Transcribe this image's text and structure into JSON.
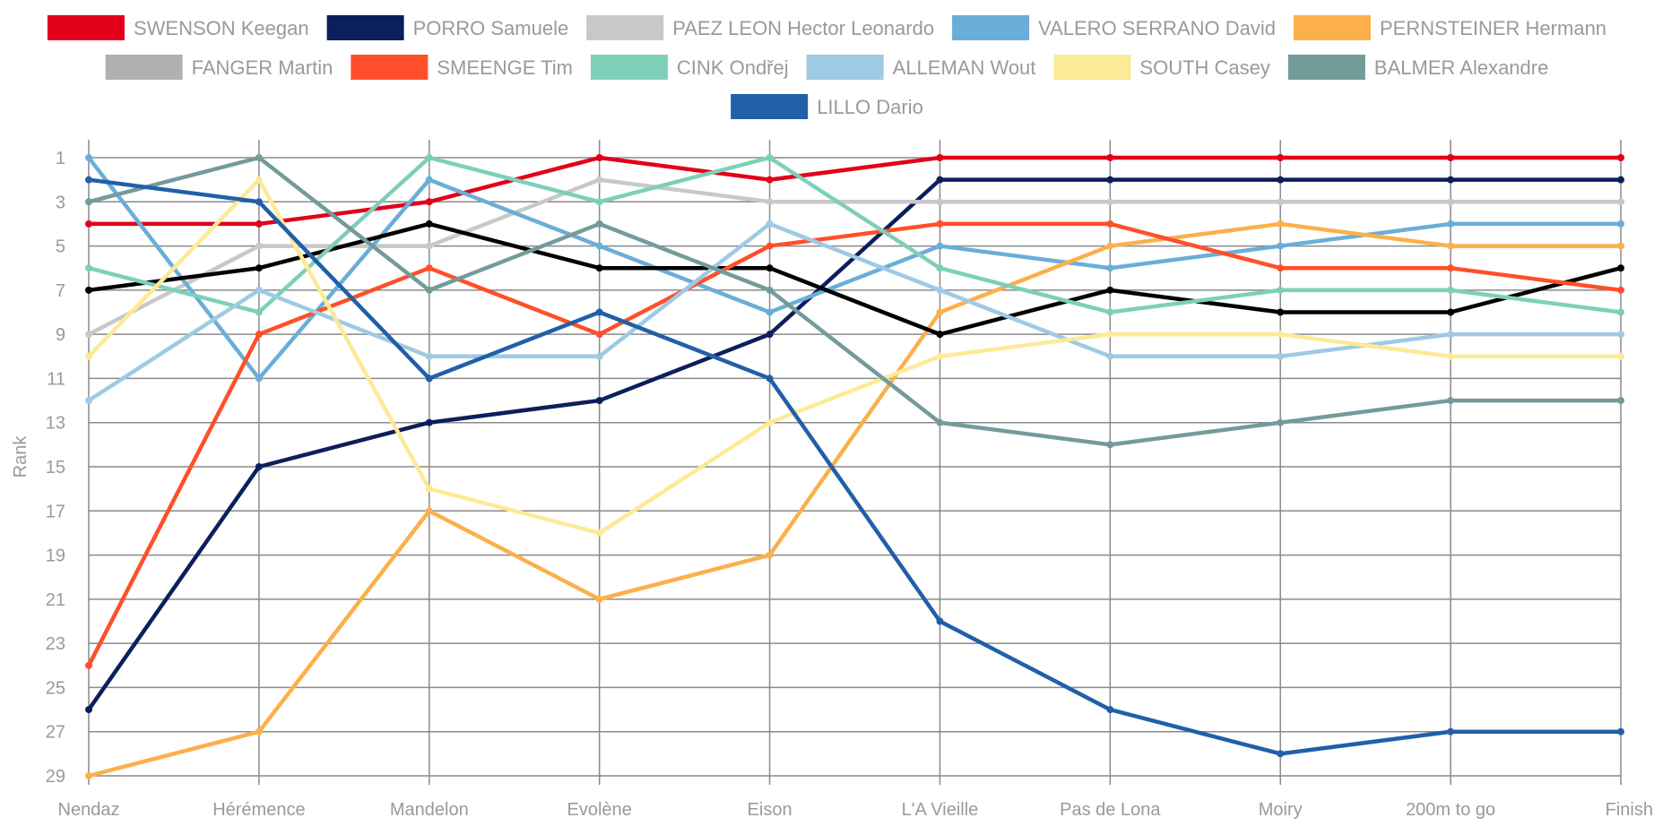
{
  "chart_data": {
    "type": "line",
    "title": "",
    "xlabel": "",
    "ylabel": "Rank",
    "categories": [
      "Nendaz",
      "Hérémence",
      "Mandelon",
      "Evolène",
      "Eison",
      "L'A Vieille",
      "Pas de Lona",
      "Moiry",
      "200m to go",
      "Finish"
    ],
    "y_ticks": [
      1,
      3,
      5,
      7,
      9,
      11,
      13,
      15,
      17,
      19,
      21,
      23,
      25,
      27,
      29
    ],
    "ylim": [
      0.5,
      29
    ],
    "y_reversed": true,
    "grid": true,
    "legend_position": "top",
    "series": [
      {
        "name": "SWENSON Keegan",
        "color": "#e2001a",
        "values": [
          4,
          4,
          3,
          1,
          2,
          1,
          1,
          1,
          1,
          1
        ]
      },
      {
        "name": "PORRO Samuele",
        "color": "#0b1f5c",
        "values": [
          26,
          15,
          13,
          12,
          9,
          2,
          2,
          2,
          2,
          2
        ]
      },
      {
        "name": "PAEZ LEON Hector Leonardo",
        "color": "#c8c8c8",
        "values": [
          9,
          5,
          5,
          2,
          3,
          3,
          3,
          3,
          3,
          3
        ]
      },
      {
        "name": "VALERO SERRANO David",
        "color": "#6aaed8",
        "values": [
          1,
          11,
          2,
          5,
          8,
          5,
          6,
          5,
          4,
          4
        ]
      },
      {
        "name": "PERNSTEINER Hermann",
        "color": "#fbb04b",
        "values": [
          29,
          27,
          17,
          21,
          19,
          8,
          5,
          4,
          5,
          5
        ]
      },
      {
        "name": "FANGER Martin",
        "color": "#000000",
        "legend_color": "#b0b0b0",
        "values": [
          7,
          6,
          4,
          6,
          6,
          9,
          7,
          8,
          8,
          6
        ]
      },
      {
        "name": "SMEENGE Tim",
        "color": "#ff4f2a",
        "values": [
          24,
          9,
          6,
          9,
          5,
          4,
          4,
          6,
          6,
          7
        ]
      },
      {
        "name": "CINK Ondřej",
        "color": "#7ecfb8",
        "values": [
          6,
          8,
          1,
          3,
          1,
          6,
          8,
          7,
          7,
          8
        ]
      },
      {
        "name": "ALLEMAN Wout",
        "color": "#9ecae4",
        "values": [
          12,
          7,
          10,
          10,
          4,
          7,
          10,
          10,
          9,
          9
        ]
      },
      {
        "name": "SOUTH Casey",
        "color": "#fdea96",
        "values": [
          10,
          2,
          16,
          18,
          13,
          10,
          9,
          9,
          10,
          10
        ]
      },
      {
        "name": "BALMER Alexandre",
        "color": "#739b9a",
        "values": [
          3,
          1,
          7,
          4,
          7,
          13,
          14,
          13,
          12,
          12
        ]
      },
      {
        "name": "LILLO Dario",
        "color": "#215fa8",
        "values": [
          2,
          3,
          11,
          8,
          11,
          22,
          26,
          28,
          27,
          27
        ]
      }
    ]
  }
}
